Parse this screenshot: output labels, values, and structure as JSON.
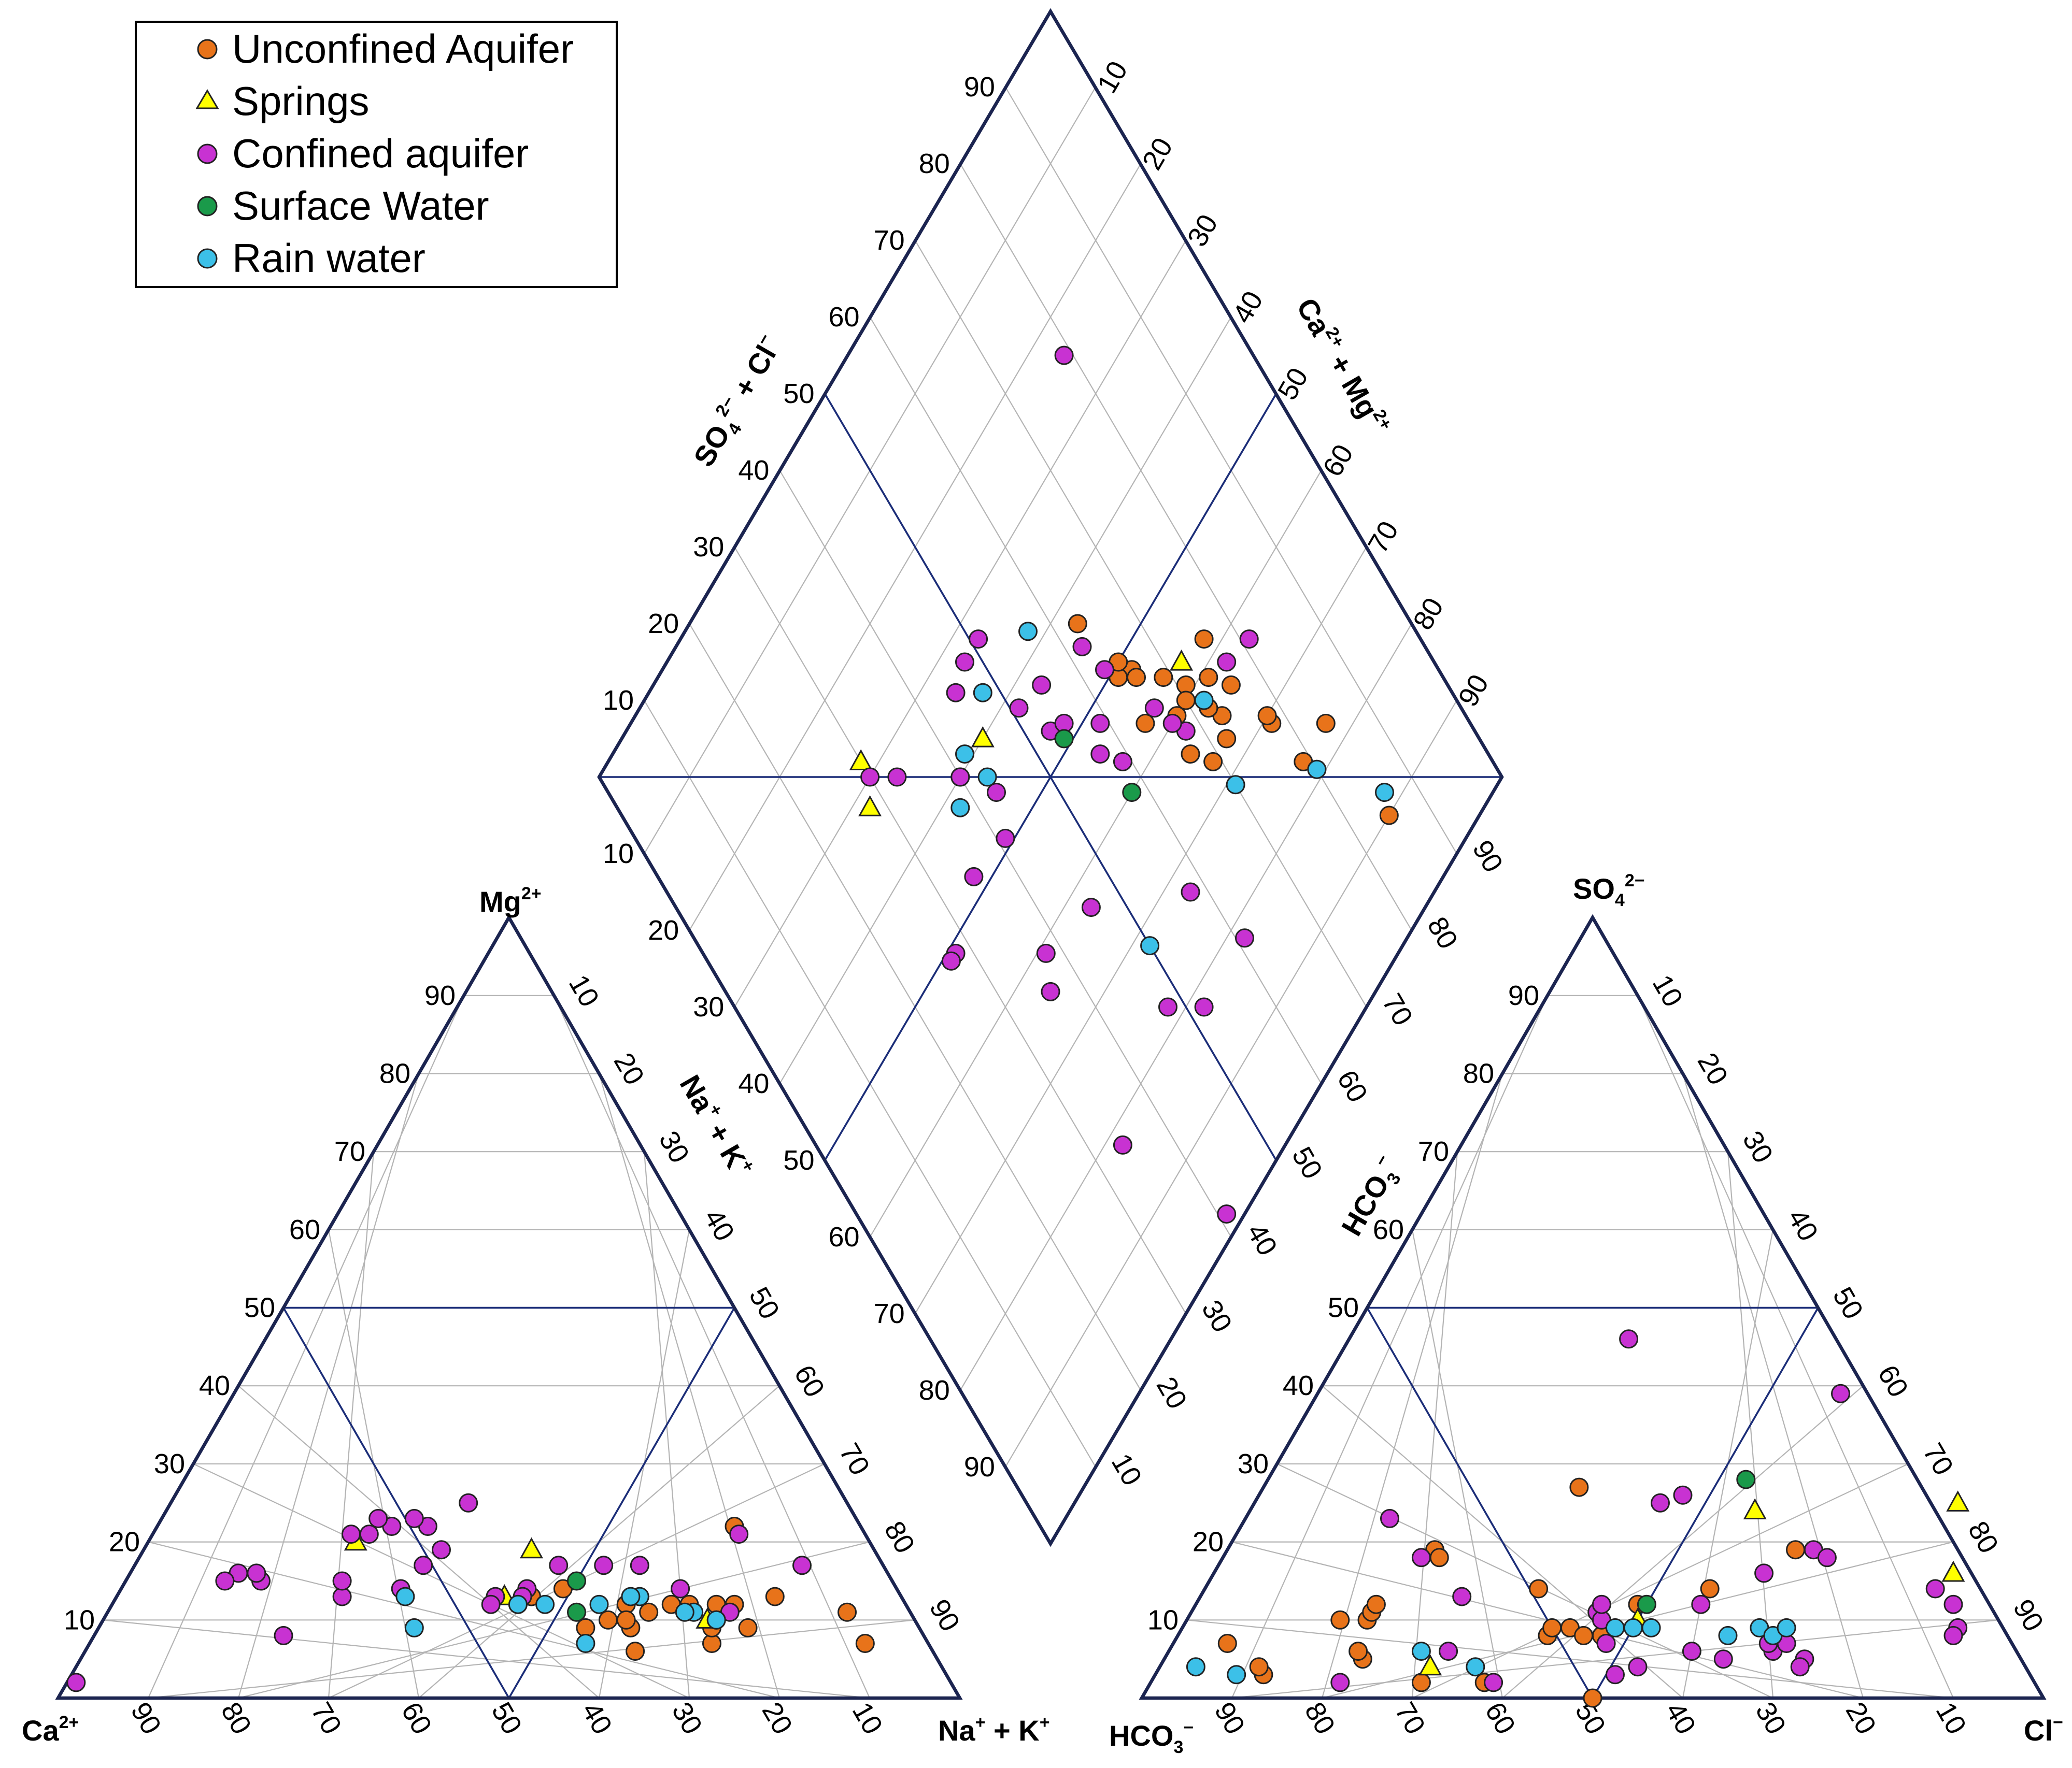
{
  "chart_data": {
    "type": "scatter",
    "subtype": "piper-diagram",
    "legend": {
      "placement": "top-left",
      "entries": [
        {
          "key": "unconfined",
          "label": "Unconfined Aquifer",
          "marker": "circle",
          "color": "#e8731a"
        },
        {
          "key": "springs",
          "label": "Springs",
          "marker": "triangle",
          "color": "#ffff00"
        },
        {
          "key": "confined",
          "label": "Confined aquifer",
          "marker": "circle",
          "color": "#c832d2"
        },
        {
          "key": "surface",
          "label": "Surface Water",
          "marker": "circle",
          "color": "#1a9a4a"
        },
        {
          "key": "rain",
          "label": "Rain water",
          "marker": "circle",
          "color": "#3cc0e8"
        }
      ]
    },
    "ticks": [
      "10",
      "20",
      "30",
      "40",
      "50",
      "60",
      "70",
      "80",
      "90"
    ],
    "axis_titles": {
      "cation_left": "Ca",
      "cation_left_sup": "2+",
      "cation_top": "Mg",
      "cation_top_sup": "2+",
      "cation_right": "Na",
      "cation_right_sup1": "+",
      "cation_right_mid": " + K",
      "cation_right_sup2": "+",
      "cation_edge": "Na",
      "cation_edge_sup1": "+",
      "cation_edge_mid": " + K",
      "cation_edge_sup2": "+",
      "anion_left": "HCO",
      "anion_left_sub": "3",
      "anion_left_sup": "−",
      "anion_top": "SO",
      "anion_top_sub": "4",
      "anion_top_sup": "2−",
      "anion_right": "Cl",
      "anion_right_sup": "−",
      "anion_edge": "HCO",
      "anion_edge_sub": "3",
      "anion_edge_sup": "−",
      "diamond_left": "SO",
      "diamond_left_sub": "4",
      "diamond_left_sup": "2−",
      "diamond_left_rest": " + Cl",
      "diamond_left_sup2": "−",
      "diamond_right": "Ca",
      "diamond_right_sup1": "2+",
      "diamond_right_mid": " + Mg",
      "diamond_right_sup2": "2+"
    },
    "samples": {
      "cation_note": "values are [Mg2+ %, Na+ + K+ %]",
      "anion_note": "values are [SO4 %, Cl %]",
      "diamond_note": "values are [Na+K %, SO4+Cl %]",
      "cation": {
        "unconfined": [
          [
            7,
            86
          ],
          [
            11,
            82
          ],
          [
            9,
            72
          ],
          [
            13,
            73
          ],
          [
            22,
            64
          ],
          [
            7,
            69
          ],
          [
            12,
            69
          ],
          [
            12,
            67
          ],
          [
            9,
            68
          ],
          [
            12,
            64
          ],
          [
            12,
            62
          ],
          [
            11,
            60
          ],
          [
            12,
            57
          ],
          [
            9,
            59
          ],
          [
            10,
            58
          ],
          [
            6,
            61
          ],
          [
            10,
            56
          ],
          [
            9,
            54
          ],
          [
            14,
            49
          ],
          [
            13,
            46
          ],
          [
            12,
            45
          ]
        ],
        "springs": [
          [
            10,
            67
          ],
          [
            19,
            43
          ],
          [
            13,
            43
          ],
          [
            20,
            23
          ]
        ],
        "confined": [
          [
            17,
            74
          ],
          [
            11,
            69
          ],
          [
            21,
            65
          ],
          [
            14,
            62
          ],
          [
            17,
            56
          ],
          [
            17,
            52
          ],
          [
            17,
            47
          ],
          [
            14,
            45
          ],
          [
            13,
            45
          ],
          [
            13,
            42
          ],
          [
            12,
            42
          ],
          [
            25,
            33
          ],
          [
            22,
            30
          ],
          [
            23,
            28
          ],
          [
            22,
            26
          ],
          [
            23,
            24
          ],
          [
            21,
            24
          ],
          [
            21,
            22
          ],
          [
            19,
            33
          ],
          [
            17,
            32
          ],
          [
            14,
            31
          ],
          [
            13,
            25
          ],
          [
            15,
            24
          ],
          [
            8,
            21
          ],
          [
            15,
            15
          ],
          [
            16,
            14
          ],
          [
            16,
            12
          ],
          [
            15,
            11
          ],
          [
            2,
            1
          ]
        ],
        "surface": [
          [
            15,
            50
          ],
          [
            11,
            52
          ]
        ],
        "rain": [
          [
            10,
            68
          ],
          [
            10,
            68
          ],
          [
            11,
            65
          ],
          [
            11,
            64
          ],
          [
            13,
            58
          ],
          [
            13,
            57
          ],
          [
            12,
            54
          ],
          [
            7,
            55
          ],
          [
            12,
            48
          ],
          [
            12,
            45
          ],
          [
            9,
            35
          ],
          [
            13,
            32
          ]
        ]
      },
      "anion": {
        "unconfined": [
          [
            7,
            6
          ],
          [
            3,
            12
          ],
          [
            4,
            11
          ],
          [
            5,
            22
          ],
          [
            10,
            17
          ],
          [
            10,
            20
          ],
          [
            11,
            20
          ],
          [
            12,
            20
          ],
          [
            6,
            21
          ],
          [
            19,
            23
          ],
          [
            18,
            24
          ],
          [
            2,
            30
          ],
          [
            2,
            37
          ],
          [
            14,
            37
          ],
          [
            8,
            41
          ],
          [
            9,
            41
          ],
          [
            9,
            43
          ],
          [
            27,
            35
          ],
          [
            12,
            49
          ],
          [
            8,
            45
          ],
          [
            8,
            47
          ],
          [
            0,
            50
          ],
          [
            14,
            56
          ],
          [
            19,
            63
          ]
        ],
        "springs": [
          [
            4,
            30
          ],
          [
            10,
            50
          ],
          [
            24,
            56
          ],
          [
            25,
            78
          ],
          [
            16,
            82
          ]
        ],
        "confined": [
          [
            2,
            21
          ],
          [
            23,
            16
          ],
          [
            18,
            22
          ],
          [
            13,
            29
          ],
          [
            6,
            31
          ],
          [
            2,
            38
          ],
          [
            11,
            45
          ],
          [
            10,
            46
          ],
          [
            12,
            45
          ],
          [
            7,
            48
          ],
          [
            3,
            51
          ],
          [
            46,
            31
          ],
          [
            25,
            45
          ],
          [
            26,
            47
          ],
          [
            4,
            53
          ],
          [
            12,
            56
          ],
          [
            16,
            61
          ],
          [
            19,
            65
          ],
          [
            6,
            58
          ],
          [
            5,
            62
          ],
          [
            18,
            67
          ],
          [
            5,
            71
          ],
          [
            6,
            67
          ],
          [
            7,
            66
          ],
          [
            7,
            68
          ],
          [
            4,
            71
          ],
          [
            39,
            58
          ],
          [
            14,
            81
          ],
          [
            12,
            84
          ],
          [
            9,
            86
          ],
          [
            8,
            86
          ]
        ],
        "surface": [
          [
            28,
            53
          ],
          [
            12,
            50
          ]
        ],
        "rain": [
          [
            4,
            4
          ],
          [
            3,
            9
          ],
          [
            6,
            28
          ],
          [
            4,
            35
          ],
          [
            9,
            48
          ],
          [
            9,
            50
          ],
          [
            9,
            52
          ],
          [
            8,
            61
          ],
          [
            9,
            64
          ],
          [
            8,
            66
          ],
          [
            9,
            67
          ]
        ]
      },
      "diamond": {
        "unconfined": [
          [
            15,
            10
          ],
          [
            16,
            23
          ],
          [
            21,
            23
          ],
          [
            22,
            29
          ],
          [
            24,
            36
          ],
          [
            28,
            33
          ],
          [
            31,
            33
          ],
          [
            29,
            41
          ],
          [
            34,
            48
          ],
          [
            36,
            43
          ],
          [
            32,
            40
          ],
          [
            34,
            47
          ],
          [
            27,
            35
          ],
          [
            37,
            57
          ],
          [
            28,
            37
          ],
          [
            26,
            39
          ],
          [
            30,
            40
          ],
          [
            22,
            30
          ],
          [
            33,
            36
          ],
          [
            20,
            21
          ],
          [
            24,
            42
          ],
          [
            28,
            37
          ],
          [
            31,
            44
          ],
          [
            36,
            49
          ],
          [
            35,
            50
          ]
        ],
        "springs": [
          [
            28,
            43
          ],
          [
            55,
            60
          ],
          [
            70,
            72
          ],
          [
            72,
            68
          ]
        ],
        "confined": [
          [
            21,
            76
          ],
          [
            19,
            37
          ],
          [
            23,
            38
          ],
          [
            32,
            38
          ],
          [
            34,
            43
          ],
          [
            33,
            40
          ],
          [
            41,
            43
          ],
          [
            37,
            51
          ],
          [
            45,
            57
          ],
          [
            52,
            67
          ],
          [
            41,
            48
          ],
          [
            43,
            46
          ],
          [
            47,
            53
          ],
          [
            49,
            58
          ],
          [
            38,
            55
          ],
          [
            49,
            67
          ],
          [
            45,
            52
          ],
          [
            55,
            66
          ],
          [
            57,
            55
          ],
          [
            60,
            60
          ],
          [
            59,
            51
          ],
          [
            70,
            70
          ],
          [
            67,
            67
          ],
          [
            62,
            39
          ],
          [
            60,
            60
          ],
          [
            65,
            52
          ],
          [
            72,
            49
          ],
          [
            73,
            49
          ],
          [
            54,
            37
          ],
          [
            64,
            36
          ],
          [
            39,
            18
          ],
          [
            52,
            22
          ],
          [
            59,
            2
          ],
          [
            66,
            18
          ],
          [
            48,
            18
          ],
          [
            42,
            27
          ]
        ],
        "surface": [
          [
            46,
            51
          ],
          [
            42,
            40
          ]
        ],
        "rain": [
          [
            14,
            12
          ],
          [
            28,
            38
          ],
          [
            30,
            29
          ],
          [
            43,
            62
          ],
          [
            52,
            63
          ],
          [
            57,
            57
          ],
          [
            62,
            58
          ],
          [
            58,
            61
          ],
          [
            20,
            21
          ],
          [
            50,
            28
          ]
        ]
      }
    }
  }
}
